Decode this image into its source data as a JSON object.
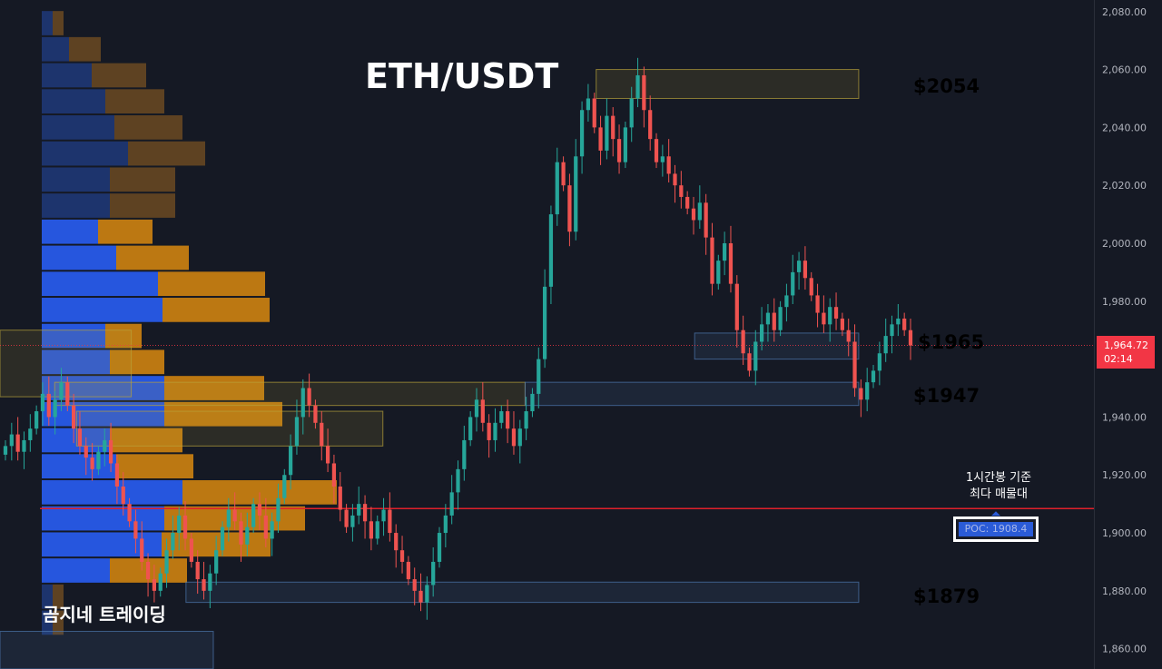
{
  "header": {
    "title": "ETH/USDT",
    "watermark": "곰지네 트레이딩"
  },
  "annotations": {
    "levels": [
      {
        "label": "$2054",
        "price": 2054,
        "color": "#f5b72c"
      },
      {
        "label": "$1965",
        "price": 1965,
        "color": "#3fa8e6"
      },
      {
        "label": "$1947",
        "price": 1947,
        "color": "#3fa8e6"
      },
      {
        "label": "$1879",
        "price": 1879,
        "color": "#3fa8e6"
      }
    ],
    "poc_note_line1": "1시간봉 기준",
    "poc_note_line2": "최다 매물대",
    "poc_label": "POC: 1908.4",
    "poc_price": 1908.4,
    "current_price": "1,964.72",
    "countdown": "02:14"
  },
  "colors": {
    "background": "#151924",
    "up": "#26a69a",
    "down": "#ef5350",
    "poc_line": "#e0202a",
    "profile_blue_dim": "#1e3a7a",
    "profile_orange_dim": "#6b4a22",
    "profile_blue": "#2962ff",
    "profile_orange": "#d98a0f"
  },
  "chart_data": {
    "type": "candlestick",
    "title": "ETH/USDT",
    "yaxis": {
      "ticks": [
        "1,860.00",
        "1,880.00",
        "1,900.00",
        "1,920.00",
        "1,940.00",
        "1,960.00",
        "1,980.00",
        "2,000.00",
        "2,020.00",
        "2,040.00",
        "2,060.00",
        "2,080.00"
      ],
      "tick_values": [
        1860,
        1880,
        1900,
        1920,
        1940,
        1960,
        1980,
        2000,
        2020,
        2040,
        2060,
        2080
      ],
      "range": [
        1853,
        2084
      ]
    },
    "close_path": [
      1930,
      1934,
      1928,
      1932,
      1936,
      1942,
      1948,
      1940,
      1946,
      1952,
      1944,
      1936,
      1930,
      1926,
      1922,
      1928,
      1932,
      1924,
      1916,
      1910,
      1904,
      1898,
      1890,
      1884,
      1880,
      1886,
      1894,
      1900,
      1906,
      1898,
      1890,
      1884,
      1880,
      1886,
      1894,
      1902,
      1908,
      1904,
      1896,
      1902,
      1910,
      1906,
      1898,
      1904,
      1912,
      1920,
      1930,
      1940,
      1950,
      1944,
      1938,
      1930,
      1924,
      1916,
      1908,
      1902,
      1906,
      1910,
      1904,
      1898,
      1904,
      1908,
      1900,
      1894,
      1890,
      1884,
      1880,
      1876,
      1882,
      1890,
      1900,
      1906,
      1914,
      1922,
      1932,
      1940,
      1946,
      1938,
      1932,
      1938,
      1942,
      1936,
      1930,
      1936,
      1942,
      1948,
      1960,
      1985,
      2010,
      2028,
      2020,
      2004,
      2030,
      2046,
      2050,
      2040,
      2032,
      2044,
      2036,
      2028,
      2040,
      2050,
      2058,
      2046,
      2036,
      2028,
      2030,
      2024,
      2020,
      2016,
      2012,
      2008,
      2014,
      2002,
      1986,
      1994,
      2000,
      1986,
      1970,
      1962,
      1956,
      1966,
      1972,
      1976,
      1970,
      1978,
      1982,
      1990,
      1994,
      1988,
      1982,
      1976,
      1972,
      1978,
      1974,
      1970,
      1966,
      1950,
      1946,
      1952,
      1956,
      1962,
      1968,
      1972,
      1974,
      1970,
      1964.72
    ],
    "volume_profile": [
      {
        "price": 2076,
        "buy": 12,
        "sell": 12
      },
      {
        "price": 2067,
        "buy": 30,
        "sell": 35
      },
      {
        "price": 2058,
        "buy": 55,
        "sell": 60
      },
      {
        "price": 2049,
        "buy": 70,
        "sell": 65
      },
      {
        "price": 2040,
        "buy": 80,
        "sell": 75
      },
      {
        "price": 2031,
        "buy": 95,
        "sell": 85
      },
      {
        "price": 2022,
        "buy": 75,
        "sell": 72
      },
      {
        "price": 2013,
        "buy": 75,
        "sell": 72
      },
      {
        "price": 2004,
        "buy": 62,
        "sell": 60
      },
      {
        "price": 1995,
        "buy": 82,
        "sell": 80
      },
      {
        "price": 1986,
        "buy": 128,
        "sell": 118
      },
      {
        "price": 1977,
        "buy": 133,
        "sell": 118
      },
      {
        "price": 1968,
        "buy": 70,
        "sell": 40
      },
      {
        "price": 1959,
        "buy": 75,
        "sell": 60
      },
      {
        "price": 1950,
        "buy": 135,
        "sell": 110
      },
      {
        "price": 1941,
        "buy": 135,
        "sell": 130
      },
      {
        "price": 1932,
        "buy": 75,
        "sell": 80
      },
      {
        "price": 1923,
        "buy": 82,
        "sell": 85
      },
      {
        "price": 1914,
        "buy": 155,
        "sell": 170
      },
      {
        "price": 1905,
        "buy": 135,
        "sell": 155
      },
      {
        "price": 1896,
        "buy": 132,
        "sell": 120
      },
      {
        "price": 1887,
        "buy": 75,
        "sell": 85
      },
      {
        "price": 1878,
        "buy": 12,
        "sell": 12
      },
      {
        "price": 1869,
        "buy": 12,
        "sell": 12
      }
    ],
    "zones": [
      {
        "low": 2050,
        "high": 2060,
        "color": "#b8a23a",
        "x0": 0.545,
        "x1": 0.785
      },
      {
        "low": 1960,
        "high": 1969,
        "color": "#4f79b0",
        "x0": 0.635,
        "x1": 0.785
      },
      {
        "low": 1944,
        "high": 1952,
        "color": "#b8a23a",
        "x0": 0.05,
        "x1": 0.48
      },
      {
        "low": 1944,
        "high": 1952,
        "color": "#4f79b0",
        "x0": 0.48,
        "x1": 0.785
      },
      {
        "low": 1930,
        "high": 1942,
        "color": "#b8a23a",
        "x0": 0.07,
        "x1": 0.35
      },
      {
        "low": 1876,
        "high": 1883,
        "color": "#4f79b0",
        "x0": 0.17,
        "x1": 0.785
      },
      {
        "low": 1947,
        "high": 1970,
        "color": "#b8a23a",
        "x0": 0.0,
        "x1": 0.12
      },
      {
        "low": 1853,
        "high": 1866,
        "color": "#4f79b0",
        "x0": 0.0,
        "x1": 0.195
      }
    ]
  }
}
